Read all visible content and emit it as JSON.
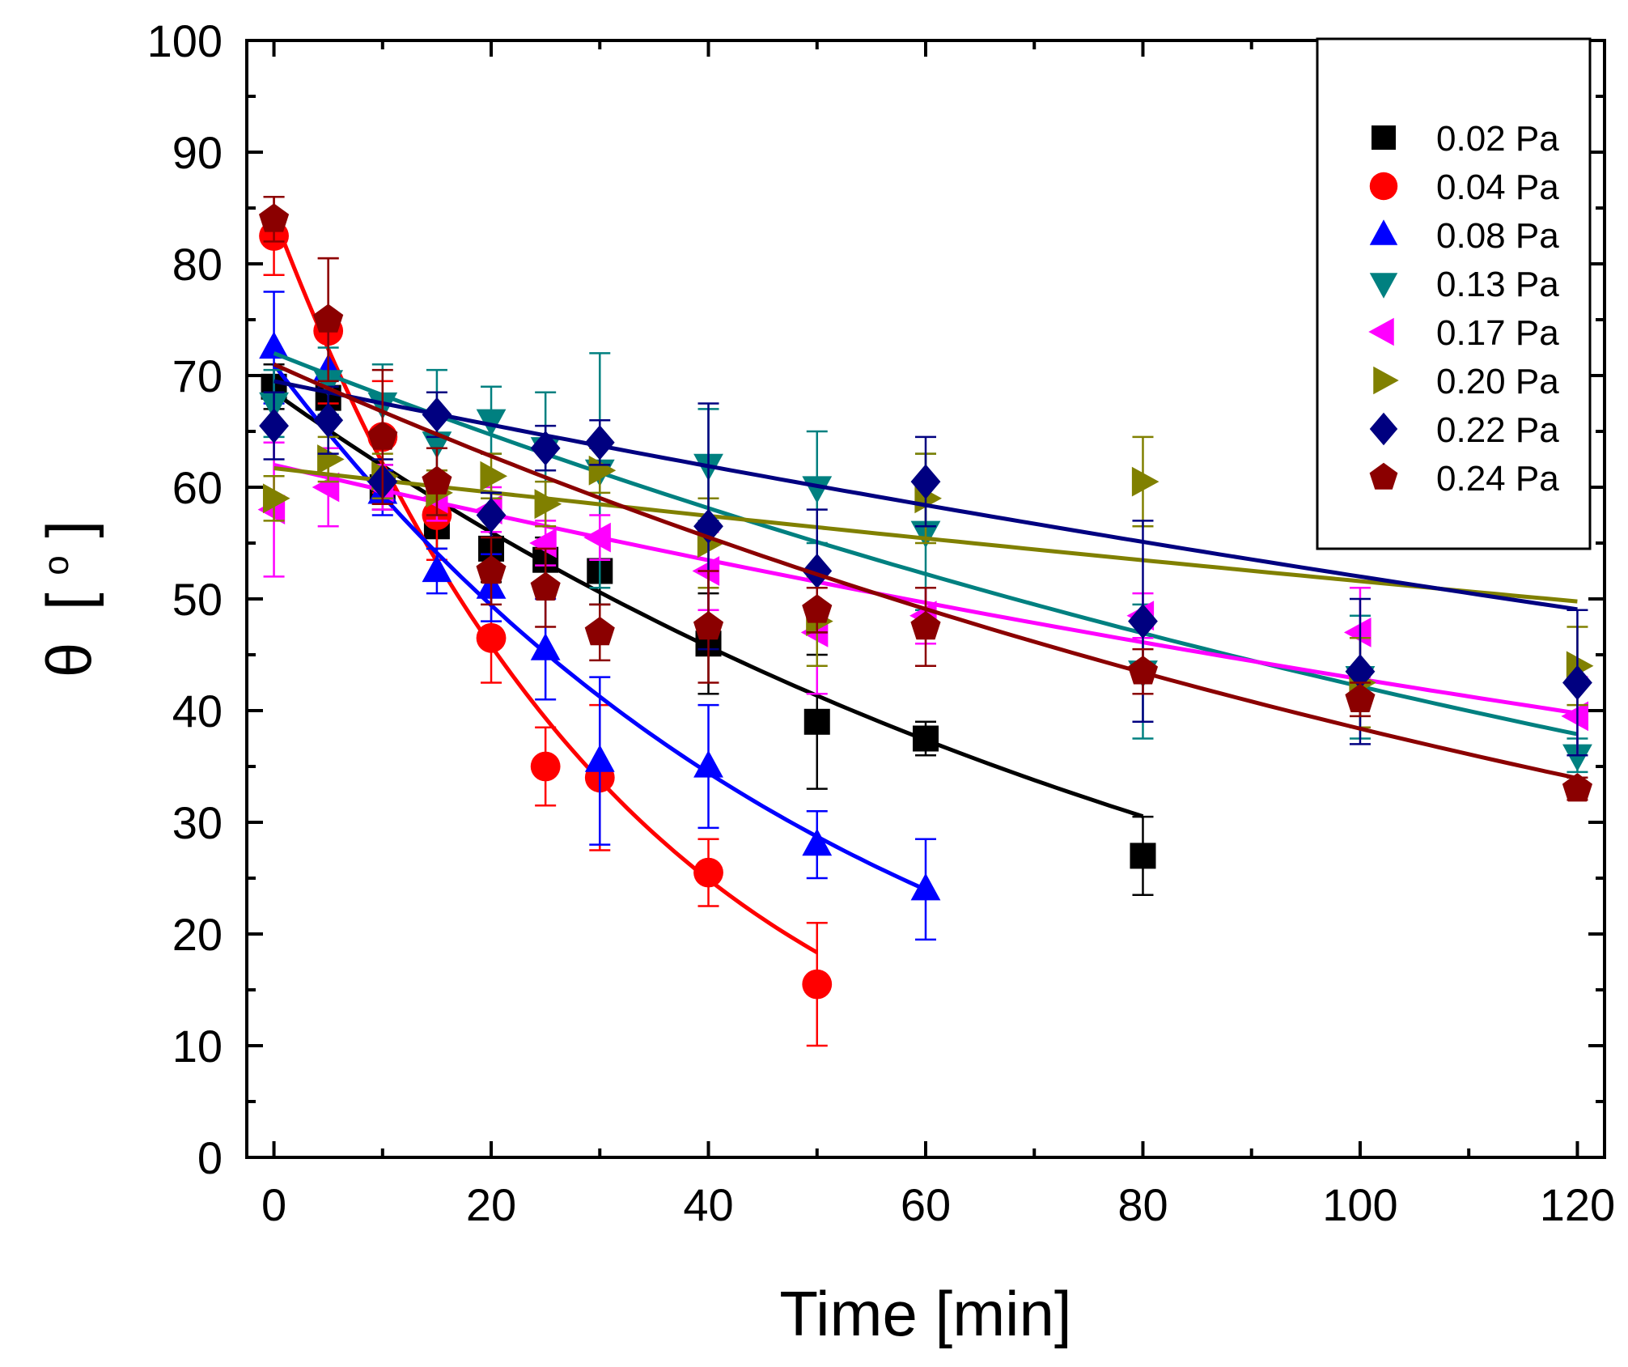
{
  "chart_data": {
    "type": "scatter",
    "title": "",
    "xlabel": "Time [min]",
    "ylabel_symbol": "θ",
    "ylabel_unit_open": "[",
    "ylabel_unit_deg": "o",
    "ylabel_unit_close": "]",
    "xlim": [
      -2.5,
      122.5
    ],
    "ylim": [
      0,
      100
    ],
    "xticks": [
      0,
      20,
      40,
      60,
      80,
      100,
      120
    ],
    "yticks": [
      0,
      10,
      20,
      30,
      40,
      50,
      60,
      70,
      80,
      90,
      100
    ],
    "legend_position": "top-right",
    "grid": false,
    "series": [
      {
        "name": "0.02 Pa",
        "color": "#000000",
        "marker": "square",
        "x": [
          0,
          5,
          10,
          15,
          20,
          25,
          30,
          40,
          50,
          60,
          80
        ],
        "y": [
          69,
          68,
          60,
          56.5,
          54.5,
          53.5,
          52.5,
          46,
          39,
          37.5,
          27
        ],
        "err": [
          2,
          2,
          2,
          2,
          3,
          2,
          3,
          4.5,
          6,
          1.5,
          3.5
        ],
        "fit_x": [
          0,
          80
        ],
        "fit_a": 68.5,
        "fit_k": 0.0101
      },
      {
        "name": "0.04 Pa",
        "color": "#ff0000",
        "marker": "circle",
        "x": [
          0,
          5,
          10,
          15,
          20,
          25,
          30,
          40,
          50
        ],
        "y": [
          82.5,
          74,
          64.5,
          57.5,
          46.5,
          35,
          34,
          25.5,
          15.5
        ],
        "err": [
          3.5,
          6.5,
          5,
          4,
          4,
          3.5,
          6.5,
          3,
          5.5
        ],
        "fit_x": [
          0,
          50
        ],
        "fit_a": 84.3,
        "fit_k": 0.0305
      },
      {
        "name": "0.08 Pa",
        "color": "#0000ff",
        "marker": "triangle-up",
        "x": [
          0,
          5,
          10,
          15,
          20,
          25,
          30,
          40,
          50,
          60
        ],
        "y": [
          72.5,
          70.5,
          59.5,
          52.5,
          51,
          45.5,
          35.5,
          35,
          28,
          24
        ],
        "err": [
          5,
          4,
          2,
          2,
          3,
          4.5,
          7.5,
          5.5,
          3,
          4.5
        ],
        "fit_x": [
          0,
          60
        ],
        "fit_a": 71,
        "fit_k": 0.0181
      },
      {
        "name": "0.13 Pa",
        "color": "#008080",
        "marker": "triangle-down",
        "x": [
          0,
          5,
          10,
          15,
          20,
          25,
          30,
          40,
          50,
          60,
          80,
          100,
          120
        ],
        "y": [
          67.5,
          69.5,
          67.5,
          64,
          66,
          63.5,
          61.5,
          62,
          60,
          56,
          43.5,
          43,
          36
        ],
        "err": [
          3,
          3,
          3.5,
          6.5,
          3,
          5,
          10.5,
          5,
          5,
          7,
          6,
          5.5,
          1.5
        ],
        "fit_x": [
          0,
          120
        ],
        "fit_a": 72,
        "fit_k": 0.00535
      },
      {
        "name": "0.17 Pa",
        "color": "#ff00ff",
        "marker": "triangle-left",
        "x": [
          0,
          5,
          10,
          15,
          20,
          25,
          30,
          40,
          50,
          60,
          80,
          100,
          120
        ],
        "y": [
          58,
          60,
          60,
          59,
          58,
          55,
          55.5,
          52.5,
          47,
          48.5,
          48.5,
          47,
          39.5
        ],
        "err": [
          6,
          3.5,
          2,
          2,
          2,
          2,
          2,
          3.5,
          5.5,
          2.5,
          2,
          4,
          3.5
        ],
        "fit_x": [
          0,
          120
        ],
        "fit_a": 62,
        "fit_k": 0.0037
      },
      {
        "name": "0.20 Pa",
        "color": "#808000",
        "marker": "triangle-right",
        "x": [
          0,
          5,
          10,
          15,
          20,
          25,
          30,
          40,
          50,
          60,
          80,
          100,
          120
        ],
        "y": [
          59,
          62.5,
          61,
          59.5,
          61,
          58.5,
          61.5,
          55,
          48,
          59,
          60.5,
          42.5,
          44
        ],
        "err": [
          2,
          2,
          2,
          2,
          2,
          2,
          2,
          4,
          4,
          4,
          4,
          4,
          3.5
        ],
        "fit_x": [
          0,
          120
        ],
        "fit_a": 61.7,
        "fit_k": 0.00179
      },
      {
        "name": "0.22 Pa",
        "color": "#000080",
        "marker": "diamond",
        "x": [
          0,
          5,
          10,
          15,
          20,
          25,
          30,
          40,
          50,
          60,
          80,
          100,
          120
        ],
        "y": [
          65.5,
          66,
          60.5,
          66.5,
          57.5,
          63.5,
          64,
          56.5,
          52.5,
          60.5,
          48,
          43.5,
          42.5
        ],
        "err": [
          3,
          3,
          2,
          2,
          2,
          2,
          2,
          11,
          5.5,
          4,
          9,
          6.5,
          6.5
        ],
        "fit_x": [
          0,
          120
        ],
        "fit_a": 69.5,
        "fit_k": 0.0029
      },
      {
        "name": "0.24 Pa",
        "color": "#8b0000",
        "marker": "pentagon",
        "x": [
          0,
          5,
          10,
          15,
          20,
          25,
          30,
          40,
          50,
          60,
          80,
          100,
          120
        ],
        "y": [
          84,
          75,
          64.5,
          60.5,
          52.5,
          51,
          47,
          47.5,
          49,
          47.5,
          43.5,
          41,
          33
        ],
        "err": [
          2,
          5.5,
          6,
          3,
          3,
          3.5,
          2.5,
          5,
          2,
          3.5,
          2,
          1.5,
          1
        ],
        "fit_x": [
          0,
          120
        ],
        "fit_a": 71,
        "fit_k": 0.00615
      }
    ]
  }
}
